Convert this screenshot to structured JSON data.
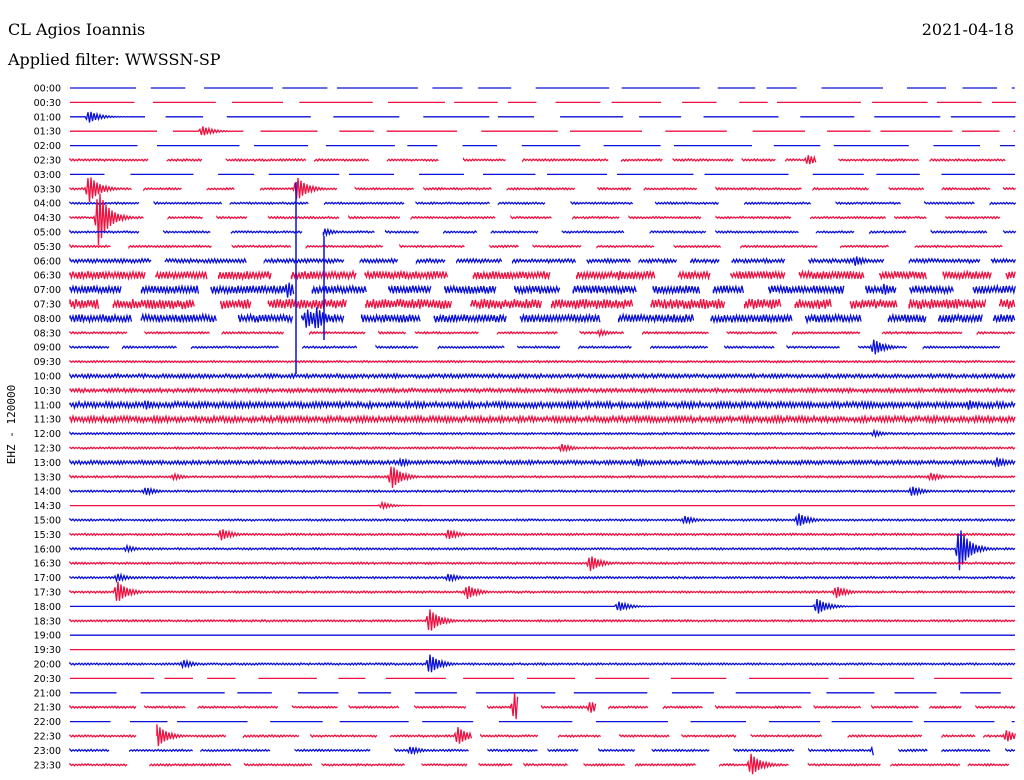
{
  "header": {
    "station": "CL Agios Ioannis",
    "date": "2021-04-18",
    "filter": "Applied filter: WWSSN-SP"
  },
  "colors": {
    "even": "#0a10d8",
    "odd": "#f01040"
  },
  "chart_data": {
    "type": "line",
    "title": "CL Agios Ioannis",
    "subtitle": "Applied filter: WWSSN-SP",
    "ylabel": "EHZ - 120000",
    "grid": false,
    "rows": [
      {
        "label": "00:00",
        "style": "dashed",
        "amp": 0
      },
      {
        "label": "00:30",
        "style": "dashed",
        "amp": 0
      },
      {
        "label": "01:00",
        "style": "dashed",
        "amp": 0,
        "events": [
          [
            0.02,
            6
          ]
        ]
      },
      {
        "label": "01:30",
        "style": "dashed",
        "amp": 0,
        "events": [
          [
            0.14,
            5
          ]
        ]
      },
      {
        "label": "02:00",
        "style": "dashed",
        "amp": 0
      },
      {
        "label": "02:30",
        "style": "dashed",
        "amp": 1,
        "events": [
          [
            0.4,
            5
          ],
          [
            0.78,
            5
          ]
        ]
      },
      {
        "label": "03:00",
        "style": "dashed",
        "amp": 0
      },
      {
        "label": "03:30",
        "style": "dashed",
        "amp": 1,
        "events": [
          [
            0.02,
            14
          ],
          [
            0.24,
            12
          ]
        ]
      },
      {
        "label": "04:00",
        "style": "dashed",
        "amp": 1
      },
      {
        "label": "04:30",
        "style": "dashed",
        "amp": 1,
        "events": [
          [
            0.03,
            28
          ]
        ]
      },
      {
        "label": "05:00",
        "style": "dashed",
        "amp": 1,
        "events": [
          [
            0.26,
            8
          ]
        ]
      },
      {
        "label": "05:30",
        "style": "dashed",
        "amp": 1
      },
      {
        "label": "06:00",
        "style": "dashed",
        "amp": 2,
        "events": [
          [
            0.83,
            5
          ]
        ]
      },
      {
        "label": "06:30",
        "style": "dashed",
        "amp": 4,
        "events": [
          [
            0.58,
            5
          ]
        ]
      },
      {
        "label": "07:00",
        "style": "dashed",
        "amp": 4,
        "events": [
          [
            0.23,
            8
          ],
          [
            0.86,
            6
          ]
        ]
      },
      {
        "label": "07:30",
        "style": "dashed",
        "amp": 5
      },
      {
        "label": "08:00",
        "style": "dashed",
        "amp": 4,
        "events": [
          [
            0.25,
            10
          ],
          [
            0.26,
            12
          ]
        ]
      },
      {
        "label": "08:30",
        "style": "dashed",
        "amp": 1,
        "events": [
          [
            0.56,
            3
          ]
        ]
      },
      {
        "label": "09:00",
        "style": "dashed",
        "amp": 1,
        "events": [
          [
            0.85,
            8
          ]
        ]
      },
      {
        "label": "09:30",
        "style": "solid",
        "amp": 1
      },
      {
        "label": "10:00",
        "style": "solid",
        "amp": 2
      },
      {
        "label": "10:30",
        "style": "solid",
        "amp": 2
      },
      {
        "label": "11:00",
        "style": "solid",
        "amp": 3,
        "events": [
          [
            0.08,
            5
          ],
          [
            0.95,
            5
          ]
        ]
      },
      {
        "label": "11:30",
        "style": "solid",
        "amp": 3
      },
      {
        "label": "12:00",
        "style": "solid",
        "amp": 1,
        "events": [
          [
            0.85,
            3
          ]
        ]
      },
      {
        "label": "12:30",
        "style": "solid",
        "amp": 1,
        "events": [
          [
            0.52,
            4
          ]
        ]
      },
      {
        "label": "13:00",
        "style": "solid",
        "amp": 2,
        "events": [
          [
            0.35,
            4
          ],
          [
            0.6,
            4
          ],
          [
            0.98,
            5
          ]
        ]
      },
      {
        "label": "13:30",
        "style": "solid",
        "amp": 1,
        "events": [
          [
            0.11,
            3
          ],
          [
            0.34,
            12
          ],
          [
            0.91,
            4
          ]
        ]
      },
      {
        "label": "14:00",
        "style": "solid",
        "amp": 1,
        "events": [
          [
            0.08,
            4
          ],
          [
            0.89,
            5
          ]
        ]
      },
      {
        "label": "14:30",
        "style": "solid",
        "amp": 0,
        "events": [
          [
            0.33,
            3
          ]
        ]
      },
      {
        "label": "15:00",
        "style": "solid",
        "amp": 1,
        "events": [
          [
            0.65,
            4
          ],
          [
            0.77,
            7
          ]
        ]
      },
      {
        "label": "15:30",
        "style": "solid",
        "amp": 1,
        "events": [
          [
            0.16,
            6
          ],
          [
            0.4,
            5
          ]
        ]
      },
      {
        "label": "16:00",
        "style": "solid",
        "amp": 1,
        "events": [
          [
            0.06,
            3
          ],
          [
            0.94,
            22
          ]
        ]
      },
      {
        "label": "16:30",
        "style": "solid",
        "amp": 1,
        "events": [
          [
            0.55,
            8
          ]
        ]
      },
      {
        "label": "17:00",
        "style": "solid",
        "amp": 1,
        "events": [
          [
            0.05,
            4
          ],
          [
            0.4,
            4
          ]
        ]
      },
      {
        "label": "17:30",
        "style": "solid",
        "amp": 1,
        "events": [
          [
            0.05,
            11
          ],
          [
            0.42,
            7
          ],
          [
            0.81,
            6
          ]
        ]
      },
      {
        "label": "18:00",
        "style": "solid",
        "amp": 0,
        "events": [
          [
            0.58,
            5
          ],
          [
            0.79,
            8
          ]
        ]
      },
      {
        "label": "18:30",
        "style": "solid",
        "amp": 1,
        "events": [
          [
            0.38,
            12
          ]
        ]
      },
      {
        "label": "19:00",
        "style": "solid",
        "amp": 0
      },
      {
        "label": "19:30",
        "style": "solid",
        "amp": 0
      },
      {
        "label": "20:00",
        "style": "solid",
        "amp": 1,
        "events": [
          [
            0.12,
            4
          ],
          [
            0.38,
            10
          ]
        ]
      },
      {
        "label": "20:30",
        "style": "dashed",
        "amp": 0
      },
      {
        "label": "21:00",
        "style": "dashed",
        "amp": 0
      },
      {
        "label": "21:30",
        "style": "dashed",
        "amp": 1,
        "events": [
          [
            0.47,
            14
          ],
          [
            0.55,
            6
          ]
        ]
      },
      {
        "label": "22:00",
        "style": "dashed",
        "amp": 0
      },
      {
        "label": "22:30",
        "style": "dashed",
        "amp": 1,
        "events": [
          [
            0.09,
            14
          ],
          [
            0.41,
            9
          ],
          [
            0.99,
            6
          ]
        ]
      },
      {
        "label": "23:00",
        "style": "dashed",
        "amp": 1,
        "events": [
          [
            0.36,
            4
          ],
          [
            0.85,
            6
          ]
        ]
      },
      {
        "label": "23:30",
        "style": "dashed",
        "amp": 1,
        "events": [
          [
            0.72,
            11
          ]
        ]
      }
    ]
  }
}
